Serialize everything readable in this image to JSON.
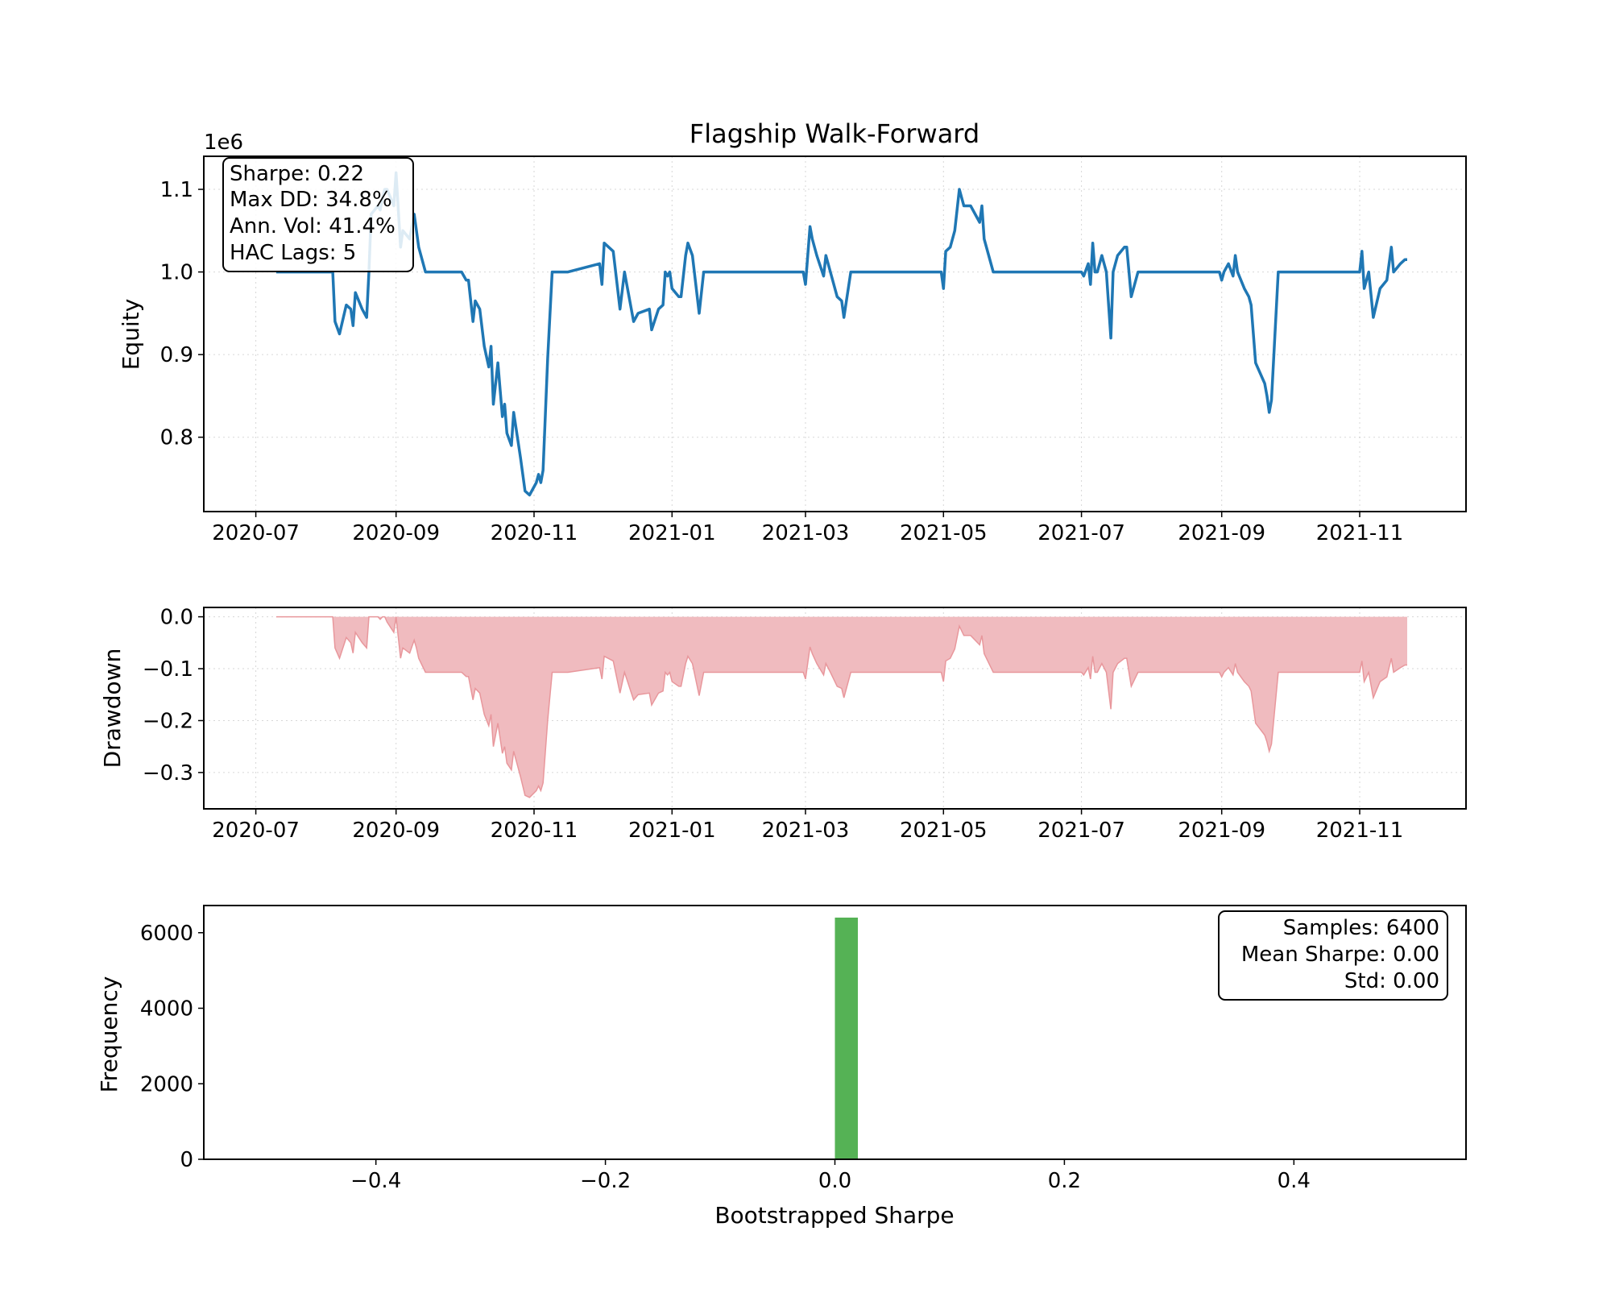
{
  "chart_data": [
    {
      "type": "line",
      "title": "Flagship Walk-Forward",
      "xlabel": "",
      "ylabel": "Equity",
      "offset_text": "1e6",
      "ylim": [
        0.71,
        1.14
      ],
      "xlim": [
        "2020-06-08",
        "2021-12-18"
      ],
      "y_ticks": [
        0.8,
        0.9,
        1.0,
        1.1
      ],
      "y_tick_labels": [
        "0.8",
        "0.9",
        "1.0",
        "1.1"
      ],
      "x_ticks": [
        "2020-07-01",
        "2020-09-01",
        "2020-11-01",
        "2021-01-01",
        "2021-03-01",
        "2021-05-01",
        "2021-07-01",
        "2021-09-01",
        "2021-11-01"
      ],
      "x_tick_labels": [
        "2020-07",
        "2020-09",
        "2020-11",
        "2021-01",
        "2021-03",
        "2021-05",
        "2021-07",
        "2021-09",
        "2021-11"
      ],
      "grid": true,
      "color": "#1f77b4",
      "stats_box": [
        "Sharpe: 0.22",
        "Max DD: 34.8%",
        "Ann. Vol: 41.4%",
        "HAC Lags: 5"
      ],
      "series": [
        {
          "x": [
            "2020-07-10",
            "2020-08-04",
            "2020-08-05",
            "2020-08-07",
            "2020-08-10",
            "2020-08-12",
            "2020-08-13",
            "2020-08-14",
            "2020-08-17",
            "2020-08-19",
            "2020-08-20",
            "2020-08-21",
            "2020-08-24",
            "2020-08-25",
            "2020-08-26",
            "2020-08-27",
            "2020-08-28",
            "2020-08-31",
            "2020-09-01",
            "2020-09-03",
            "2020-09-04",
            "2020-09-07",
            "2020-09-09",
            "2020-09-10",
            "2020-09-11",
            "2020-09-14",
            "2020-09-30",
            "2020-10-02",
            "2020-10-03",
            "2020-10-05",
            "2020-10-06",
            "2020-10-08",
            "2020-10-10",
            "2020-10-12",
            "2020-10-13",
            "2020-10-14",
            "2020-10-16",
            "2020-10-18",
            "2020-10-19",
            "2020-10-20",
            "2020-10-22",
            "2020-10-23",
            "2020-10-26",
            "2020-10-27",
            "2020-10-28",
            "2020-10-30",
            "2020-11-02",
            "2020-11-03",
            "2020-11-04",
            "2020-11-05",
            "2020-11-07",
            "2020-11-09",
            "2020-11-10",
            "2020-11-12",
            "2020-11-16",
            "2020-11-30",
            "2020-12-01",
            "2020-12-02",
            "2020-12-06",
            "2020-12-09",
            "2020-12-11",
            "2020-12-12",
            "2020-12-15",
            "2020-12-17",
            "2020-12-22",
            "2020-12-23",
            "2020-12-26",
            "2020-12-28",
            "2020-12-29",
            "2020-12-30",
            "2020-12-31",
            "2021-01-01",
            "2021-01-04",
            "2021-01-05",
            "2021-01-07",
            "2021-01-08",
            "2021-01-10",
            "2021-01-13",
            "2021-01-15",
            "2021-02-28",
            "2021-03-01",
            "2021-03-03",
            "2021-03-04",
            "2021-03-06",
            "2021-03-09",
            "2021-03-10",
            "2021-03-12",
            "2021-03-15",
            "2021-03-17",
            "2021-03-18",
            "2021-03-21",
            "2021-04-30",
            "2021-05-01",
            "2021-05-02",
            "2021-05-04",
            "2021-05-06",
            "2021-05-08",
            "2021-05-10",
            "2021-05-11",
            "2021-05-13",
            "2021-05-17",
            "2021-05-18",
            "2021-05-19",
            "2021-05-23",
            "2021-07-01",
            "2021-07-02",
            "2021-07-04",
            "2021-07-05",
            "2021-07-06",
            "2021-07-07",
            "2021-07-08",
            "2021-07-10",
            "2021-07-12",
            "2021-07-14",
            "2021-07-15",
            "2021-07-17",
            "2021-07-20",
            "2021-07-21",
            "2021-07-23",
            "2021-07-26",
            "2021-08-31",
            "2021-09-01",
            "2021-09-02",
            "2021-09-04",
            "2021-09-06",
            "2021-09-07",
            "2021-09-08",
            "2021-09-11",
            "2021-09-13",
            "2021-09-14",
            "2021-09-16",
            "2021-09-20",
            "2021-09-21",
            "2021-09-22",
            "2021-09-23",
            "2021-09-26",
            "2021-11-01",
            "2021-11-02",
            "2021-11-03",
            "2021-11-05",
            "2021-11-07",
            "2021-11-10",
            "2021-11-13",
            "2021-11-15",
            "2021-11-16",
            "2021-11-19",
            "2021-11-21",
            "2021-11-22"
          ],
          "values": [
            1.0,
            1.0,
            0.94,
            0.925,
            0.96,
            0.955,
            0.935,
            0.975,
            0.955,
            0.945,
            1.0,
            1.07,
            1.08,
            1.075,
            1.09,
            1.1,
            1.1,
            1.08,
            1.12,
            1.03,
            1.05,
            1.04,
            1.07,
            1.05,
            1.03,
            1.0,
            1.0,
            0.99,
            0.99,
            0.94,
            0.965,
            0.955,
            0.91,
            0.885,
            0.91,
            0.84,
            0.89,
            0.825,
            0.84,
            0.805,
            0.79,
            0.83,
            0.775,
            0.755,
            0.735,
            0.73,
            0.745,
            0.755,
            0.745,
            0.76,
            0.895,
            1.0,
            1.0,
            1.0,
            1.0,
            1.01,
            0.985,
            1.035,
            1.025,
            0.955,
            1.0,
            0.985,
            0.94,
            0.95,
            0.955,
            0.93,
            0.955,
            0.96,
            1.0,
            0.995,
            1.0,
            0.98,
            0.97,
            0.97,
            1.02,
            1.035,
            1.02,
            0.95,
            1.0,
            1.0,
            0.985,
            1.055,
            1.04,
            1.02,
            0.995,
            1.02,
            1.0,
            0.97,
            0.965,
            0.945,
            1.0,
            1.0,
            0.98,
            1.025,
            1.03,
            1.05,
            1.1,
            1.08,
            1.08,
            1.08,
            1.06,
            1.08,
            1.04,
            1.0,
            1.0,
            0.995,
            1.01,
            0.985,
            1.035,
            1.0,
            1.0,
            1.02,
            1.0,
            0.92,
            1.0,
            1.02,
            1.03,
            1.03,
            0.97,
            1.0,
            1.0,
            0.99,
            1.0,
            1.01,
            0.995,
            1.02,
            1.0,
            0.98,
            0.97,
            0.96,
            0.89,
            0.865,
            0.85,
            0.83,
            0.845,
            1.0,
            1.0,
            1.025,
            0.98,
            1.0,
            0.945,
            0.98,
            0.99,
            1.03,
            1.0,
            1.01,
            1.015,
            1.015
          ]
        }
      ]
    },
    {
      "type": "area",
      "title": "",
      "xlabel": "",
      "ylabel": "Drawdown",
      "ylim": [
        -0.37,
        0.018
      ],
      "xlim": [
        "2020-06-08",
        "2021-12-18"
      ],
      "y_ticks": [
        0.0,
        -0.1,
        -0.2,
        -0.3
      ],
      "y_tick_labels": [
        "0.0",
        "−0.1",
        "−0.2",
        "−0.3"
      ],
      "x_ticks": [
        "2020-07-01",
        "2020-09-01",
        "2020-11-01",
        "2021-01-01",
        "2021-03-01",
        "2021-05-01",
        "2021-07-01",
        "2021-09-01",
        "2021-11-01"
      ],
      "x_tick_labels": [
        "2020-07",
        "2020-09",
        "2020-11",
        "2021-01",
        "2021-03",
        "2021-05",
        "2021-07",
        "2021-09",
        "2021-11"
      ],
      "grid": true,
      "fill_color": "#f0bbbf",
      "line_color": "#e8979c",
      "series": [
        {
          "x": [
            "2020-07-10",
            "2020-08-04",
            "2020-08-05",
            "2020-08-07",
            "2020-08-10",
            "2020-08-12",
            "2020-08-13",
            "2020-08-14",
            "2020-08-17",
            "2020-08-19",
            "2020-08-20",
            "2020-08-21",
            "2020-08-24",
            "2020-08-25",
            "2020-08-26",
            "2020-08-27",
            "2020-08-28",
            "2020-08-31",
            "2020-09-01",
            "2020-09-03",
            "2020-09-04",
            "2020-09-07",
            "2020-09-09",
            "2020-09-10",
            "2020-09-11",
            "2020-09-14",
            "2020-09-30",
            "2020-10-02",
            "2020-10-03",
            "2020-10-05",
            "2020-10-06",
            "2020-10-08",
            "2020-10-10",
            "2020-10-12",
            "2020-10-13",
            "2020-10-14",
            "2020-10-16",
            "2020-10-18",
            "2020-10-19",
            "2020-10-20",
            "2020-10-22",
            "2020-10-23",
            "2020-10-26",
            "2020-10-27",
            "2020-10-28",
            "2020-10-30",
            "2020-11-02",
            "2020-11-03",
            "2020-11-04",
            "2020-11-05",
            "2020-11-07",
            "2020-11-09",
            "2020-11-10",
            "2020-11-12",
            "2020-11-16",
            "2020-11-30",
            "2020-12-01",
            "2020-12-02",
            "2020-12-06",
            "2020-12-09",
            "2020-12-11",
            "2020-12-12",
            "2020-12-15",
            "2020-12-17",
            "2020-12-22",
            "2020-12-23",
            "2020-12-26",
            "2020-12-28",
            "2020-12-29",
            "2020-12-30",
            "2020-12-31",
            "2021-01-01",
            "2021-01-04",
            "2021-01-05",
            "2021-01-07",
            "2021-01-08",
            "2021-01-10",
            "2021-01-13",
            "2021-01-15",
            "2021-02-28",
            "2021-03-01",
            "2021-03-03",
            "2021-03-04",
            "2021-03-06",
            "2021-03-09",
            "2021-03-10",
            "2021-03-12",
            "2021-03-15",
            "2021-03-17",
            "2021-03-18",
            "2021-03-21",
            "2021-04-30",
            "2021-05-01",
            "2021-05-02",
            "2021-05-04",
            "2021-05-06",
            "2021-05-08",
            "2021-05-10",
            "2021-05-11",
            "2021-05-13",
            "2021-05-17",
            "2021-05-18",
            "2021-05-19",
            "2021-05-23",
            "2021-07-01",
            "2021-07-02",
            "2021-07-04",
            "2021-07-05",
            "2021-07-06",
            "2021-07-07",
            "2021-07-08",
            "2021-07-10",
            "2021-07-12",
            "2021-07-14",
            "2021-07-15",
            "2021-07-17",
            "2021-07-20",
            "2021-07-21",
            "2021-07-23",
            "2021-07-26",
            "2021-08-31",
            "2021-09-01",
            "2021-09-02",
            "2021-09-04",
            "2021-09-06",
            "2021-09-07",
            "2021-09-08",
            "2021-09-11",
            "2021-09-13",
            "2021-09-14",
            "2021-09-16",
            "2021-09-20",
            "2021-09-21",
            "2021-09-22",
            "2021-09-23",
            "2021-09-26",
            "2021-11-01",
            "2021-11-02",
            "2021-11-03",
            "2021-11-05",
            "2021-11-07",
            "2021-11-10",
            "2021-11-13",
            "2021-11-15",
            "2021-11-16",
            "2021-11-19",
            "2021-11-21",
            "2021-11-22"
          ],
          "values": [
            0.0,
            0.0,
            -0.06,
            -0.08,
            -0.04,
            -0.05,
            -0.07,
            -0.03,
            -0.05,
            -0.06,
            0.0,
            0.0,
            0.0,
            -0.005,
            0.0,
            0.0,
            -0.01,
            -0.03,
            0.0,
            -0.08,
            -0.06,
            -0.07,
            -0.045,
            -0.06,
            -0.08,
            -0.107,
            -0.107,
            -0.115,
            -0.115,
            -0.16,
            -0.138,
            -0.147,
            -0.188,
            -0.21,
            -0.188,
            -0.25,
            -0.205,
            -0.263,
            -0.25,
            -0.282,
            -0.295,
            -0.259,
            -0.308,
            -0.326,
            -0.344,
            -0.348,
            -0.335,
            -0.326,
            -0.335,
            -0.32,
            -0.2,
            -0.107,
            -0.107,
            -0.107,
            -0.107,
            -0.098,
            -0.12,
            -0.076,
            -0.085,
            -0.147,
            -0.107,
            -0.12,
            -0.16,
            -0.15,
            -0.147,
            -0.17,
            -0.147,
            -0.143,
            -0.107,
            -0.112,
            -0.107,
            -0.125,
            -0.134,
            -0.134,
            -0.09,
            -0.076,
            -0.09,
            -0.152,
            -0.107,
            -0.107,
            -0.12,
            -0.058,
            -0.071,
            -0.09,
            -0.112,
            -0.09,
            -0.107,
            -0.134,
            -0.138,
            -0.156,
            -0.107,
            -0.107,
            -0.125,
            -0.085,
            -0.08,
            -0.062,
            -0.018,
            -0.036,
            -0.036,
            -0.036,
            -0.054,
            -0.036,
            -0.071,
            -0.107,
            -0.107,
            -0.112,
            -0.098,
            -0.12,
            -0.076,
            -0.107,
            -0.107,
            -0.09,
            -0.107,
            -0.178,
            -0.107,
            -0.09,
            -0.08,
            -0.08,
            -0.134,
            -0.107,
            -0.107,
            -0.116,
            -0.107,
            -0.098,
            -0.112,
            -0.09,
            -0.107,
            -0.125,
            -0.134,
            -0.143,
            -0.205,
            -0.228,
            -0.241,
            -0.259,
            -0.245,
            -0.107,
            -0.107,
            -0.085,
            -0.125,
            -0.107,
            -0.156,
            -0.125,
            -0.116,
            -0.08,
            -0.107,
            -0.098,
            -0.093,
            -0.093
          ]
        }
      ]
    },
    {
      "type": "bar",
      "title": "",
      "xlabel": "Bootstrapped Sharpe",
      "ylabel": "Frequency",
      "xlim": [
        -0.55,
        0.55
      ],
      "ylim": [
        0,
        6720
      ],
      "x_ticks": [
        -0.4,
        -0.2,
        0.0,
        0.2,
        0.4
      ],
      "x_tick_labels": [
        "−0.4",
        "−0.2",
        "0.0",
        "0.2",
        "0.4"
      ],
      "y_ticks": [
        0,
        2000,
        4000,
        6000
      ],
      "y_tick_labels": [
        "0",
        "2000",
        "4000",
        "6000"
      ],
      "grid": false,
      "color": "#55b255",
      "bins": [
        {
          "x0": 0.0,
          "x1": 0.02,
          "value": 6400
        }
      ],
      "stats_box": [
        "Samples: 6400",
        "Mean Sharpe: 0.00",
        "Std: 0.00"
      ]
    }
  ]
}
